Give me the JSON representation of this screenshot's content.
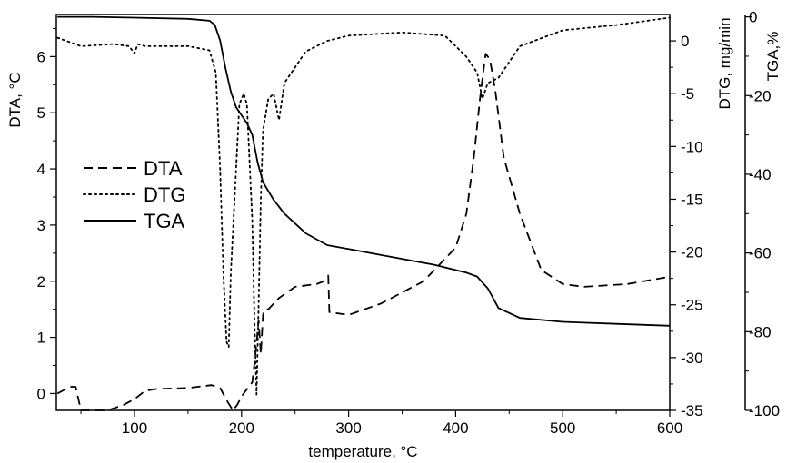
{
  "chart_data": {
    "type": "line",
    "xlabel": "temperature, °C",
    "xlim": [
      27,
      600
    ],
    "xticks": [
      100,
      200,
      300,
      400,
      500,
      600
    ],
    "axes": {
      "dta": {
        "label": "DTA, °C",
        "ylim": [
          -0.3,
          6.75
        ],
        "ticks": [
          0,
          1,
          2,
          3,
          4,
          5,
          6
        ]
      },
      "dtg": {
        "label": "DTG, mg/min",
        "ylim": [
          -35,
          2.5
        ],
        "ticks": [
          0,
          -5,
          -10,
          -15,
          -20,
          -25,
          -30,
          -35
        ]
      },
      "tga": {
        "label": "TGA,%",
        "ylim": [
          -100,
          0.6
        ],
        "ticks": [
          0,
          -20,
          -40,
          -60,
          -80,
          -100
        ]
      }
    },
    "legend_position": "left-middle",
    "series": [
      {
        "name": "DTA",
        "axis": "dta",
        "style": "dashed",
        "x": [
          28,
          40,
          45,
          50,
          60,
          75,
          90,
          100,
          110,
          120,
          150,
          172,
          180,
          187,
          192,
          196,
          200,
          206,
          210,
          213,
          216,
          218,
          220,
          222,
          225,
          235,
          250,
          270,
          277,
          281,
          282,
          300,
          330,
          370,
          400,
          410,
          417,
          423,
          426,
          428,
          432,
          437,
          445,
          460,
          480,
          500,
          520,
          560,
          600
        ],
        "y": [
          0,
          0.12,
          0.12,
          -0.3,
          -0.3,
          -0.3,
          -0.2,
          -0.1,
          0.05,
          0.08,
          0.1,
          0.15,
          0.1,
          -0.15,
          -0.3,
          -0.2,
          -0.05,
          0.1,
          0.2,
          0.7,
          1.3,
          0.7,
          1.4,
          1.5,
          1.5,
          1.7,
          1.9,
          1.95,
          2.0,
          2.1,
          1.45,
          1.4,
          1.6,
          2.0,
          2.6,
          3.2,
          4.2,
          5.3,
          5.75,
          6.05,
          5.95,
          5.4,
          4.2,
          3.2,
          2.2,
          1.95,
          1.9,
          1.95,
          2.08
        ]
      },
      {
        "name": "DTG",
        "axis": "dtg",
        "style": "dotted",
        "x": [
          28,
          50,
          80,
          95,
          100,
          103,
          110,
          150,
          170,
          176,
          180,
          183,
          186,
          188,
          190,
          195,
          198,
          202,
          205,
          210,
          212,
          214,
          216,
          218,
          220,
          225,
          230,
          235,
          240,
          260,
          280,
          300,
          350,
          390,
          410,
          420,
          425,
          430,
          440,
          460,
          500,
          550,
          600
        ],
        "y": [
          0.3,
          -0.5,
          -0.3,
          -0.5,
          -1.2,
          -0.3,
          -0.5,
          -0.5,
          -0.9,
          -3.0,
          -12.0,
          -22.0,
          -28.5,
          -29.0,
          -22.0,
          -12.0,
          -6.0,
          -5.0,
          -6.0,
          -17.0,
          -26.0,
          -33.5,
          -25.0,
          -15.0,
          -8.5,
          -5.5,
          -5.0,
          -7.5,
          -4.0,
          -1.0,
          0.0,
          0.5,
          0.8,
          0.5,
          -1.5,
          -3.0,
          -5.5,
          -4.0,
          -3.5,
          -0.5,
          1.0,
          1.5,
          2.2
        ]
      },
      {
        "name": "TGA",
        "axis": "tga",
        "style": "solid",
        "x": [
          28,
          60,
          100,
          150,
          170,
          175,
          180,
          185,
          190,
          195,
          200,
          205,
          210,
          215,
          220,
          230,
          240,
          260,
          280,
          300,
          340,
          380,
          410,
          420,
          430,
          440,
          460,
          500,
          550,
          600
        ],
        "y": [
          0,
          0,
          -0.2,
          -0.5,
          -1.0,
          -2.0,
          -6.0,
          -13.0,
          -19.0,
          -23.0,
          -25.0,
          -27.0,
          -30.0,
          -37.0,
          -42.0,
          -46.5,
          -50.0,
          -55.0,
          -58.0,
          -59.0,
          -61.0,
          -63.0,
          -65.0,
          -66.0,
          -69.0,
          -74.0,
          -76.5,
          -77.5,
          -78.0,
          -78.5
        ]
      }
    ]
  }
}
